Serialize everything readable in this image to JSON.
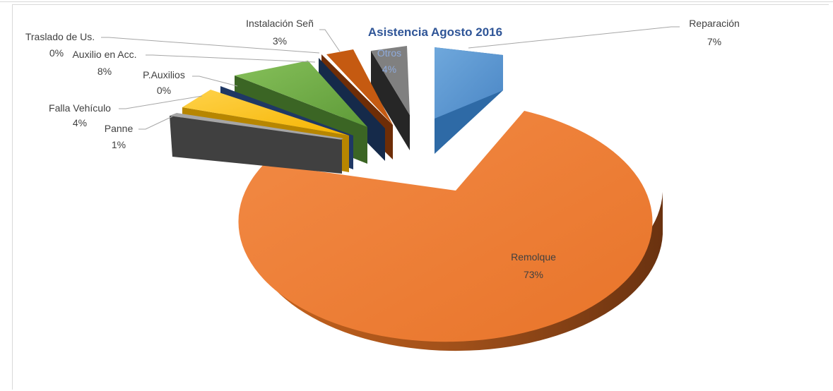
{
  "chart_data": {
    "type": "pie",
    "style": "3d-exploded",
    "title": "Asistencia Agosto 2016",
    "slices": [
      {
        "name": "Reparación",
        "percent": 7,
        "label": "7%",
        "color": "#5b9bd5"
      },
      {
        "name": "Remolque",
        "percent": 73,
        "label": "73%",
        "color": "#ed7d31"
      },
      {
        "name": "Panne",
        "percent": 1,
        "label": "1%",
        "color": "#595959"
      },
      {
        "name": "Falla Vehículo",
        "percent": 4,
        "label": "4%",
        "color": "#ffc000"
      },
      {
        "name": "P.Auxilios",
        "percent": 0,
        "label": "0%",
        "color": "#1f3864"
      },
      {
        "name": "Auxilio en Acc.",
        "percent": 8,
        "label": "8%",
        "color": "#70ad47"
      },
      {
        "name": "Traslado de Us.",
        "percent": 0,
        "label": "0%",
        "color": "#1f3864"
      },
      {
        "name": "Instalación Señ",
        "percent": 3,
        "label": "3%",
        "color": "#c55a11"
      },
      {
        "name": "Otros",
        "percent": 4,
        "label": "4%",
        "color": "#7f7f7f"
      }
    ],
    "legend": "none",
    "data_labels": "category-name-and-percent"
  }
}
